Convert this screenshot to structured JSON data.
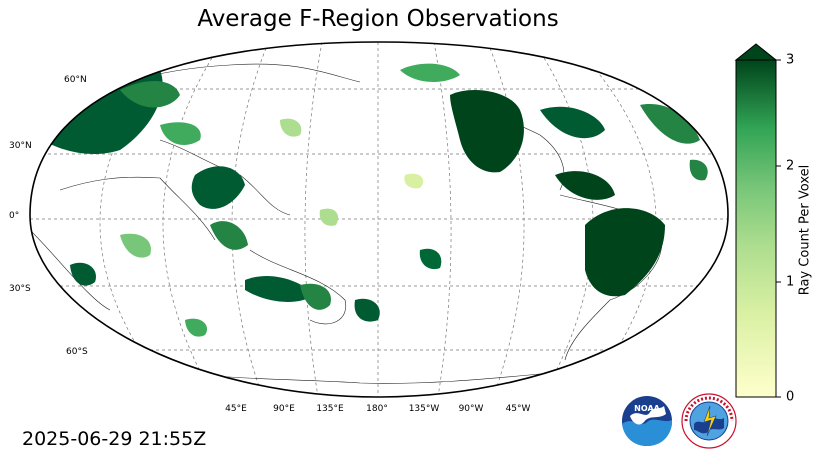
{
  "title": "Average F-Region Observations",
  "timestamp": "2025-06-29 21:55Z",
  "map": {
    "lat_labels": [
      "60°N",
      "30°N",
      "0°",
      "30°S",
      "60°S"
    ],
    "lon_labels": [
      "45°E",
      "90°E",
      "135°E",
      "180°",
      "135°W",
      "90°W",
      "45°W"
    ]
  },
  "colorbar": {
    "label": "Ray Count Per Voxel",
    "ticks": [
      "0",
      "1",
      "2",
      "3"
    ],
    "range": [
      0,
      3
    ],
    "extend": "max",
    "colors": [
      "#ffffcc",
      "#c2e699",
      "#78c679",
      "#31a354",
      "#006837",
      "#00441b"
    ]
  },
  "logos": {
    "noaa": "NOAA",
    "nws": "NATIONAL WEATHER SERVICE"
  }
}
